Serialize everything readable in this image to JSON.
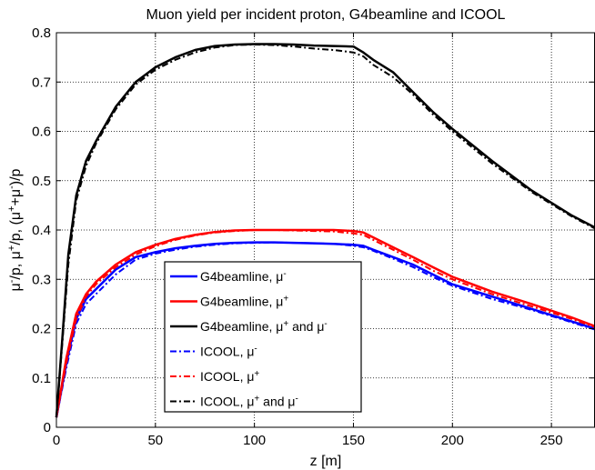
{
  "chart_data": {
    "type": "line",
    "title": "Muon yield per incident proton, G4beamline and ICOOL",
    "xlabel": "z [m]",
    "ylabel_parts": [
      "μ",
      "-",
      "/p, ",
      "μ",
      "+",
      "/p, (",
      "μ",
      "+",
      "+",
      "μ",
      "-",
      ")/p"
    ],
    "xlim": [
      0,
      272
    ],
    "ylim": [
      0,
      0.8
    ],
    "xticks": [
      0,
      50,
      100,
      150,
      200,
      250
    ],
    "yticks": [
      0,
      0.1,
      0.2,
      0.3,
      0.4,
      0.5,
      0.6,
      0.7,
      0.8
    ],
    "grid": true,
    "legend_position": "lower-center",
    "series": [
      {
        "name": "G4beamline, μ-",
        "label_base": "G4beamline, μ",
        "label_sup": "-",
        "label_tail": "",
        "color": "#0000ff",
        "dash": "solid",
        "x": [
          0,
          5,
          10,
          15,
          20,
          30,
          40,
          50,
          60,
          70,
          80,
          90,
          100,
          110,
          120,
          130,
          140,
          150,
          155,
          160,
          170,
          180,
          190,
          200,
          220,
          240,
          260,
          272
        ],
        "y": [
          0.02,
          0.13,
          0.22,
          0.26,
          0.28,
          0.32,
          0.345,
          0.355,
          0.363,
          0.368,
          0.372,
          0.374,
          0.375,
          0.375,
          0.374,
          0.373,
          0.372,
          0.37,
          0.368,
          0.36,
          0.345,
          0.33,
          0.31,
          0.29,
          0.265,
          0.24,
          0.215,
          0.2
        ]
      },
      {
        "name": "G4beamline, μ+",
        "label_base": "G4beamline, μ",
        "label_sup": "+",
        "label_tail": "",
        "color": "#ff0000",
        "dash": "solid",
        "x": [
          0,
          5,
          10,
          15,
          20,
          30,
          40,
          50,
          60,
          70,
          80,
          90,
          100,
          110,
          120,
          130,
          140,
          150,
          155,
          160,
          170,
          180,
          190,
          200,
          220,
          240,
          260,
          272
        ],
        "y": [
          0.02,
          0.14,
          0.23,
          0.27,
          0.295,
          0.33,
          0.355,
          0.37,
          0.382,
          0.39,
          0.396,
          0.399,
          0.4,
          0.4,
          0.4,
          0.4,
          0.4,
          0.398,
          0.395,
          0.385,
          0.365,
          0.345,
          0.325,
          0.305,
          0.275,
          0.25,
          0.223,
          0.205
        ]
      },
      {
        "name": "G4beamline, μ+ and μ-",
        "label_base": "G4beamline, μ",
        "label_sup": "+",
        "label_tail": " and μ",
        "label_sup2": "-",
        "color": "#000000",
        "dash": "solid",
        "x": [
          0,
          3,
          6,
          10,
          15,
          20,
          30,
          40,
          50,
          60,
          70,
          80,
          90,
          100,
          110,
          120,
          130,
          140,
          150,
          155,
          160,
          170,
          180,
          190,
          200,
          220,
          240,
          260,
          272
        ],
        "y": [
          0.02,
          0.18,
          0.35,
          0.47,
          0.54,
          0.58,
          0.65,
          0.7,
          0.73,
          0.75,
          0.765,
          0.773,
          0.776,
          0.777,
          0.777,
          0.776,
          0.774,
          0.773,
          0.772,
          0.76,
          0.745,
          0.72,
          0.68,
          0.64,
          0.605,
          0.54,
          0.48,
          0.43,
          0.405
        ]
      },
      {
        "name": "ICOOL, μ-",
        "label_base": "ICOOL, μ",
        "label_sup": "-",
        "label_tail": "",
        "color": "#0000ff",
        "dash": "dashdot",
        "x": [
          0,
          5,
          10,
          15,
          20,
          30,
          40,
          50,
          60,
          70,
          80,
          90,
          100,
          110,
          120,
          130,
          140,
          150,
          155,
          160,
          170,
          180,
          190,
          200,
          220,
          240,
          260,
          272
        ],
        "y": [
          0.02,
          0.12,
          0.21,
          0.25,
          0.27,
          0.31,
          0.34,
          0.352,
          0.36,
          0.366,
          0.37,
          0.373,
          0.374,
          0.375,
          0.374,
          0.373,
          0.372,
          0.368,
          0.365,
          0.358,
          0.342,
          0.325,
          0.305,
          0.287,
          0.26,
          0.238,
          0.213,
          0.198
        ]
      },
      {
        "name": "ICOOL, μ+",
        "label_base": "ICOOL, μ",
        "label_sup": "+",
        "label_tail": "",
        "color": "#ff0000",
        "dash": "dashdot",
        "x": [
          0,
          5,
          10,
          15,
          20,
          30,
          40,
          50,
          60,
          70,
          80,
          90,
          100,
          110,
          120,
          130,
          140,
          150,
          155,
          160,
          170,
          180,
          190,
          200,
          220,
          240,
          260,
          272
        ],
        "y": [
          0.02,
          0.13,
          0.22,
          0.265,
          0.29,
          0.325,
          0.35,
          0.367,
          0.38,
          0.389,
          0.395,
          0.398,
          0.4,
          0.4,
          0.399,
          0.398,
          0.397,
          0.393,
          0.39,
          0.38,
          0.36,
          0.34,
          0.318,
          0.3,
          0.27,
          0.245,
          0.22,
          0.203
        ]
      },
      {
        "name": "ICOOL, μ+ and μ-",
        "label_base": "ICOOL, μ",
        "label_sup": "+",
        "label_tail": " and μ",
        "label_sup2": "-",
        "color": "#000000",
        "dash": "dashdot",
        "x": [
          0,
          3,
          6,
          10,
          15,
          20,
          30,
          40,
          50,
          60,
          70,
          80,
          90,
          100,
          110,
          120,
          130,
          140,
          150,
          155,
          160,
          170,
          180,
          190,
          200,
          220,
          240,
          260,
          272
        ],
        "y": [
          0.02,
          0.17,
          0.33,
          0.46,
          0.53,
          0.575,
          0.645,
          0.695,
          0.725,
          0.745,
          0.76,
          0.77,
          0.775,
          0.776,
          0.775,
          0.772,
          0.768,
          0.765,
          0.76,
          0.752,
          0.735,
          0.71,
          0.675,
          0.635,
          0.6,
          0.535,
          0.477,
          0.428,
          0.403
        ]
      }
    ]
  }
}
